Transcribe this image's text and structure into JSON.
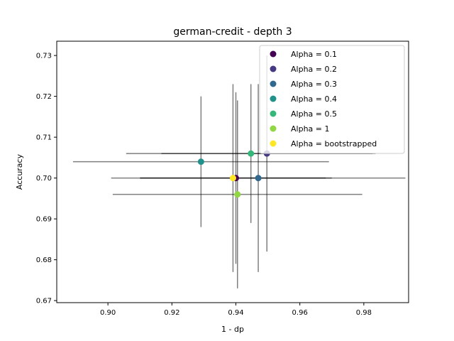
{
  "chart_data": {
    "type": "scatter",
    "title": "german-credit - depth 3",
    "xlabel": "1 - dp",
    "ylabel": "Accuracy",
    "xlim": [
      0.884,
      0.994
    ],
    "ylim": [
      0.6695,
      0.7335
    ],
    "xticks": [
      0.9,
      0.92,
      0.94,
      0.96,
      0.98
    ],
    "xtick_labels": [
      "0.90",
      "0.92",
      "0.94",
      "0.96",
      "0.98"
    ],
    "yticks": [
      0.67,
      0.68,
      0.69,
      0.7,
      0.71,
      0.72,
      0.73
    ],
    "ytick_labels": [
      "0.67",
      "0.68",
      "0.69",
      "0.70",
      "0.71",
      "0.72",
      "0.73"
    ],
    "grid": false,
    "legend_position": "upper-right",
    "errorbar_color": "#000000",
    "series": [
      {
        "name": "Alpha = 0.1",
        "color": "#440154",
        "x": 0.94,
        "y": 0.7,
        "xerr": 0.03,
        "yerr": 0.021
      },
      {
        "name": "Alpha = 0.2",
        "color": "#443983",
        "x": 0.9497,
        "y": 0.706,
        "xerr": 0.033,
        "yerr": 0.024
      },
      {
        "name": "Alpha = 0.3",
        "color": "#31688e",
        "x": 0.947,
        "y": 0.7,
        "xerr": 0.046,
        "yerr": 0.023
      },
      {
        "name": "Alpha = 0.4",
        "color": "#21918c",
        "x": 0.9291,
        "y": 0.704,
        "xerr": 0.04,
        "yerr": 0.016
      },
      {
        "name": "Alpha = 0.5",
        "color": "#35b779",
        "x": 0.9447,
        "y": 0.706,
        "xerr": 0.039,
        "yerr": 0.017
      },
      {
        "name": "Alpha = 1",
        "color": "#90d743",
        "x": 0.9405,
        "y": 0.696,
        "xerr": 0.039,
        "yerr": 0.023
      },
      {
        "name": "Alpha = bootstrapped",
        "color": "#fde725",
        "x": 0.9391,
        "y": 0.7,
        "xerr": 0.029,
        "yerr": 0.023
      }
    ]
  }
}
